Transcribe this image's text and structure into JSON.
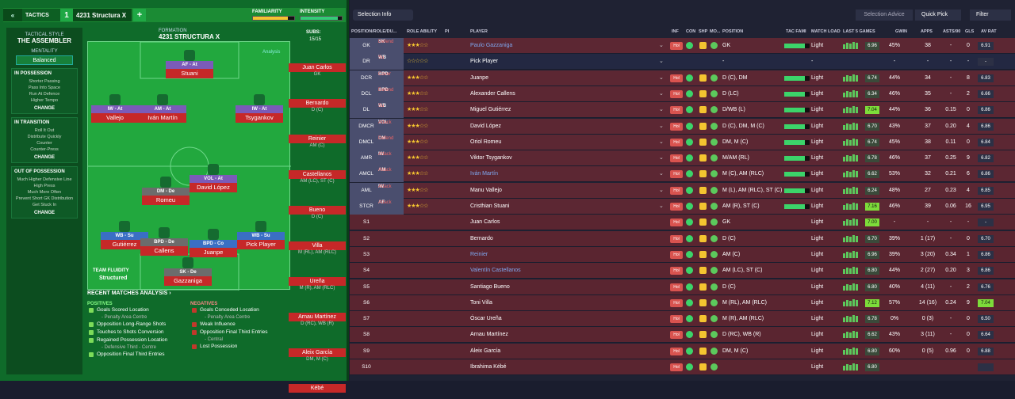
{
  "top": {
    "back": "«",
    "tactics": "TACTICS",
    "num": "1",
    "tactic_name": "4231 Structura X",
    "add": "+",
    "familiarity": "FAMILIARITY",
    "intensity": "INTENSITY",
    "familiarity_pct": 0.85,
    "intensity_pct": 0.9
  },
  "style": {
    "title": "TACTICAL STYLE",
    "name": "THE ASSEMBLER",
    "mentality_label": "MENTALITY",
    "mentality": "Balanced",
    "sections": [
      {
        "h": "IN POSSESSION",
        "items": [
          "Shorter Passing",
          "Pass Into Space",
          "Run At Defence",
          "Higher Tempo"
        ],
        "change": "CHANGE"
      },
      {
        "h": "IN TRANSITION",
        "items": [
          "Roll It Out",
          "Distribute Quickly",
          "Counter",
          "Counter-Press"
        ],
        "change": "CHANGE"
      },
      {
        "h": "OUT OF POSSESSION",
        "items": [
          "Much Higher Defensive Line",
          "High Press",
          "Much More Often",
          "Prevent Short GK Distribution",
          "Get Stuck In"
        ],
        "change": "CHANGE"
      }
    ]
  },
  "formation": {
    "label": "FORMATION",
    "name": "4231 STRUCTURA X",
    "analysis": "Analysis",
    "subs_label": "SUBS:",
    "subs": "15/15",
    "fluidity_label": "TEAM FLUIDITY",
    "fluidity": "Structured"
  },
  "pitch_players": [
    {
      "tag": "AF - At",
      "name": "Stuani"
    },
    {
      "tag": "IW - At",
      "name": "Vallejo"
    },
    {
      "tag": "AM - At",
      "name": "Iván Martín"
    },
    {
      "tag": "IW - At",
      "name": "Tsygankov"
    },
    {
      "tag": "DM - De",
      "name": "Romeu"
    },
    {
      "tag": "VOL - At",
      "name": "David López"
    },
    {
      "tag": "WB - Su",
      "name": "Gutiérrez"
    },
    {
      "tag": "BPD - De",
      "name": "Callens"
    },
    {
      "tag": "BPD - Co",
      "name": "Juanpe"
    },
    {
      "tag": "WB - Su",
      "name": "Pick Player"
    },
    {
      "tag": "SK - De",
      "name": "Gazzaniga"
    }
  ],
  "subs_list": [
    {
      "name": "Juan Carlos",
      "pos": "GK"
    },
    {
      "name": "Bernardo",
      "pos": "D (C)"
    },
    {
      "name": "Reinier",
      "pos": "AM (C)"
    },
    {
      "name": "Castellanos",
      "pos": "AM (LC), ST (C)"
    },
    {
      "name": "Bueno",
      "pos": "D (C)"
    },
    {
      "name": "Villa",
      "pos": "M (RL), AM (RLC)"
    },
    {
      "name": "Ureña",
      "pos": "M (R), AM (RLC)"
    },
    {
      "name": "Arnau Martínez",
      "pos": "D (RC), WB (R)"
    },
    {
      "name": "Aleix García",
      "pos": "DM, M (C)"
    },
    {
      "name": "Kébé",
      "pos": ""
    }
  ],
  "analysis": {
    "title": "RECENT MATCHES ANALYSIS ›",
    "pos_h": "POSITIVES",
    "neg_h": "NEGATIVES",
    "positives": [
      {
        "t": "Goals Scored Location",
        "c": "- Penalty Area Centre"
      },
      {
        "t": "Opposition Long-Range Shots",
        "c": ""
      },
      {
        "t": "Touches to Shots Conversion",
        "c": ""
      },
      {
        "t": "Regained Possession Location",
        "c": "- Defensive Third - Centre"
      },
      {
        "t": "Opposition Final Third Entries",
        "c": ""
      }
    ],
    "negatives": [
      {
        "t": "Goals Conceded Location",
        "c": "- Penalty Area Centre"
      },
      {
        "t": "Weak Influence",
        "c": ""
      },
      {
        "t": "Opposition Final Third Entries",
        "c": "- Central"
      },
      {
        "t": "Lost Possession",
        "c": ""
      }
    ]
  },
  "right": {
    "selection_info": "Selection Info",
    "selection_advice": "Selection Advice",
    "quick_pick": "Quick Pick",
    "filter": "Filter"
  },
  "headers": [
    "POSITION/ROLE/DU...",
    "ROLE ABILITY",
    "PI",
    "PLAYER",
    "INF",
    "CON",
    "SHP",
    "MO...",
    "POSITION",
    "TAC FAMI",
    "MATCH LOAD",
    "LAST 5 GAMES",
    "GWIN",
    "APPS",
    "ASTS/90",
    "GLS",
    "AV RAT"
  ],
  "rows": [
    {
      "pos": "GK",
      "role": "SK",
      "duty": "Defend",
      "stars": "★★★☆☆",
      "name": "Paulo Gazzaniga",
      "position": "GK",
      "load": "Light",
      "rat": "6.96",
      "gwin": "45%",
      "apps": "38",
      "asts": "-",
      "gls": "0",
      "av": "6.91"
    },
    {
      "pos": "DR",
      "role": "WB",
      "duty": "Su",
      "stars": "☆☆☆☆☆",
      "name": "Pick Player",
      "position": "-",
      "load": "-",
      "rat": "",
      "gwin": "-",
      "apps": "-",
      "asts": "-",
      "gls": "-",
      "av": "-"
    },
    {
      "pos": "DCR",
      "role": "BPD",
      "duty": "Cover",
      "stars": "★★★☆☆",
      "name": "Juanpe",
      "position": "D (C), DM",
      "load": "Light",
      "rat": "6.74",
      "gwin": "44%",
      "apps": "34",
      "asts": "-",
      "gls": "8",
      "av": "6.83"
    },
    {
      "pos": "DCL",
      "role": "BPD",
      "duty": "Defend",
      "stars": "★★★☆☆",
      "name": "Alexander Callens",
      "position": "D (LC)",
      "load": "Light",
      "rat": "6.34",
      "gwin": "46%",
      "apps": "35",
      "asts": "-",
      "gls": "2",
      "av": "6.66"
    },
    {
      "pos": "DL",
      "role": "WB",
      "duty": "Su",
      "stars": "★★★☆☆",
      "name": "Miguel Gutiérrez",
      "position": "D/WB (L)",
      "load": "Light",
      "rat": "7.04",
      "gwin": "44%",
      "apps": "36",
      "asts": "0.15",
      "gls": "0",
      "av": "6.86"
    },
    {
      "pos": "DMCR",
      "role": "VOL",
      "duty": "Attack",
      "stars": "★★★☆☆",
      "name": "David López",
      "position": "D (C), DM, M (C)",
      "load": "Light",
      "rat": "6.70",
      "gwin": "43%",
      "apps": "37",
      "asts": "0.20",
      "gls": "4",
      "av": "6.86"
    },
    {
      "pos": "DMCL",
      "role": "DM",
      "duty": "Defend",
      "stars": "★★★☆☆",
      "name": "Oriol Romeu",
      "position": "DM, M (C)",
      "load": "Light",
      "rat": "6.74",
      "gwin": "45%",
      "apps": "38",
      "asts": "0.11",
      "gls": "0",
      "av": "6.84"
    },
    {
      "pos": "AMR",
      "role": "IW",
      "duty": "Attack",
      "stars": "★★★☆☆",
      "name": "Viktor Tsygankov",
      "position": "M/AM (RL)",
      "load": "Light",
      "rat": "6.78",
      "gwin": "46%",
      "apps": "37",
      "asts": "0.25",
      "gls": "9",
      "av": "6.82"
    },
    {
      "pos": "AMCL",
      "role": "AM",
      "duty": "Attack",
      "stars": "★★★☆☆",
      "name": "Iván Martín",
      "position": "M (C), AM (RLC)",
      "load": "Light",
      "rat": "6.62",
      "gwin": "53%",
      "apps": "32",
      "asts": "0.21",
      "gls": "6",
      "av": "6.86"
    },
    {
      "pos": "AML",
      "role": "IW",
      "duty": "Attack",
      "stars": "★★★☆☆",
      "name": "Manu Vallejo",
      "position": "M (L), AM (RLC), ST (C)",
      "load": "Light",
      "rat": "6.24",
      "gwin": "48%",
      "apps": "27",
      "asts": "0.23",
      "gls": "4",
      "av": "6.85"
    },
    {
      "pos": "STCR",
      "role": "AF",
      "duty": "Attack",
      "stars": "★★★☆☆",
      "name": "Cristhian Stuani",
      "position": "AM (R), ST (C)",
      "load": "Light",
      "rat": "7.16",
      "gwin": "46%",
      "apps": "39",
      "asts": "0.06",
      "gls": "16",
      "av": "6.95"
    },
    {
      "pos": "S1",
      "role": "",
      "duty": "",
      "stars": "",
      "name": "Juan Carlos",
      "position": "GK",
      "load": "Light",
      "rat": "7.00",
      "gwin": "-",
      "apps": "-",
      "asts": "-",
      "gls": "-",
      "av": "-"
    },
    {
      "pos": "S2",
      "role": "",
      "duty": "",
      "stars": "",
      "name": "Bernardo",
      "position": "D (C)",
      "load": "Light",
      "rat": "6.70",
      "gwin": "39%",
      "apps": "1 (17)",
      "asts": "-",
      "gls": "0",
      "av": "6.70"
    },
    {
      "pos": "S3",
      "role": "",
      "duty": "",
      "stars": "",
      "name": "Reinier",
      "position": "AM (C)",
      "load": "Light",
      "rat": "6.96",
      "gwin": "39%",
      "apps": "3 (20)",
      "asts": "0.34",
      "gls": "1",
      "av": "6.86"
    },
    {
      "pos": "S4",
      "role": "",
      "duty": "",
      "stars": "",
      "name": "Valentín Castellanos",
      "position": "AM (LC), ST (C)",
      "load": "Light",
      "rat": "6.80",
      "gwin": "44%",
      "apps": "2 (27)",
      "asts": "0.20",
      "gls": "3",
      "av": "6.86"
    },
    {
      "pos": "S5",
      "role": "",
      "duty": "",
      "stars": "",
      "name": "Santiago Bueno",
      "position": "D (C)",
      "load": "Light",
      "rat": "6.80",
      "gwin": "40%",
      "apps": "4 (11)",
      "asts": "-",
      "gls": "2",
      "av": "6.76"
    },
    {
      "pos": "S6",
      "role": "",
      "duty": "",
      "stars": "",
      "name": "Toni Villa",
      "position": "M (RL), AM (RLC)",
      "load": "Light",
      "rat": "7.12",
      "gwin": "57%",
      "apps": "14 (16)",
      "asts": "0.24",
      "gls": "9",
      "av": "7.04"
    },
    {
      "pos": "S7",
      "role": "",
      "duty": "",
      "stars": "",
      "name": "Óscar Ureña",
      "position": "M (R), AM (RLC)",
      "load": "Light",
      "rat": "6.78",
      "gwin": "0%",
      "apps": "0 (3)",
      "asts": "-",
      "gls": "0",
      "av": "6.50"
    },
    {
      "pos": "S8",
      "role": "",
      "duty": "",
      "stars": "",
      "name": "Arnau Martínez",
      "position": "D (RC), WB (R)",
      "load": "Light",
      "rat": "6.62",
      "gwin": "43%",
      "apps": "3 (11)",
      "asts": "-",
      "gls": "0",
      "av": "6.64"
    },
    {
      "pos": "S9",
      "role": "",
      "duty": "",
      "stars": "",
      "name": "Aleix García",
      "position": "DM, M (C)",
      "load": "Light",
      "rat": "6.80",
      "gwin": "60%",
      "apps": "0 (5)",
      "asts": "0.96",
      "gls": "0",
      "av": "6.88"
    },
    {
      "pos": "S10",
      "role": "",
      "duty": "",
      "stars": "",
      "name": "Ibrahima Kébé",
      "position": "",
      "load": "Light",
      "rat": "6.80",
      "gwin": "",
      "apps": "",
      "asts": "",
      "gls": "",
      "av": ""
    }
  ]
}
